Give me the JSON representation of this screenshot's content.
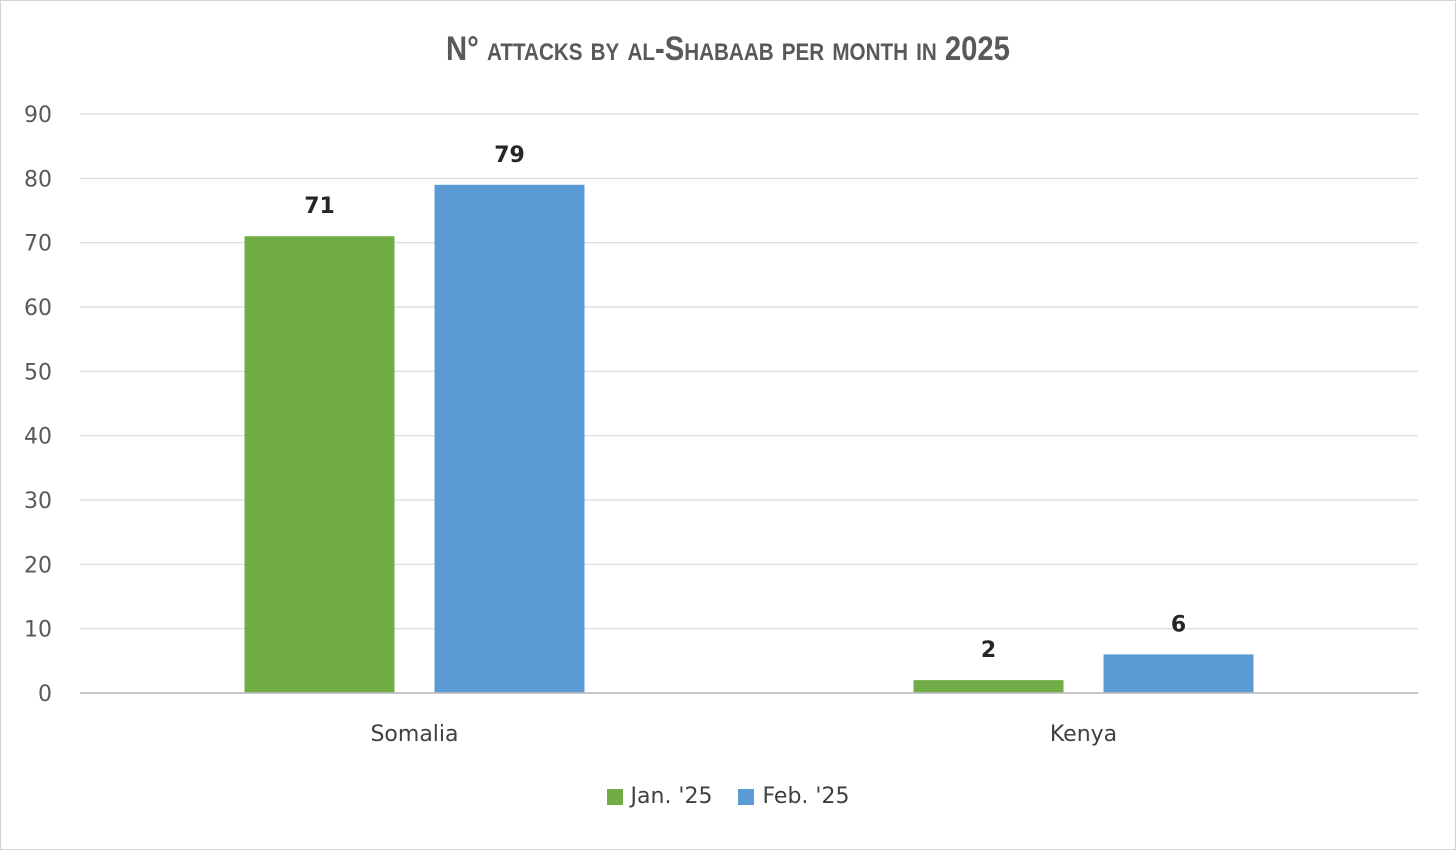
{
  "chart_data": {
    "type": "bar",
    "title": "N° attacks by al-Shabaab per month in 2025",
    "categories": [
      "Somalia",
      "Kenya"
    ],
    "series": [
      {
        "name": "Jan. '25",
        "values": [
          71,
          2
        ],
        "color": "#70AD47"
      },
      {
        "name": "Feb. '25",
        "values": [
          79,
          6
        ],
        "color": "#5B9BD5"
      }
    ],
    "ylim": [
      0,
      90
    ],
    "yticks": [
      0,
      10,
      20,
      30,
      40,
      50,
      60,
      70,
      80,
      90
    ],
    "grid": true,
    "legend_position": "bottom"
  }
}
